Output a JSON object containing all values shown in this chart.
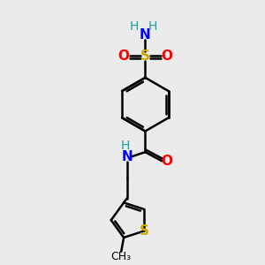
{
  "bg_color": "#ebebeb",
  "atom_colors": {
    "C": "#000000",
    "H": "#17a0a0",
    "N": "#0000ff",
    "O": "#ff0000",
    "S_sulfonyl": "#ccaa00",
    "S_thio": "#ccaa00"
  },
  "bond_color": "#000000",
  "bond_width": 1.8,
  "figsize": [
    3.0,
    3.0
  ],
  "dpi": 100,
  "xlim": [
    0,
    10
  ],
  "ylim": [
    0,
    10
  ]
}
